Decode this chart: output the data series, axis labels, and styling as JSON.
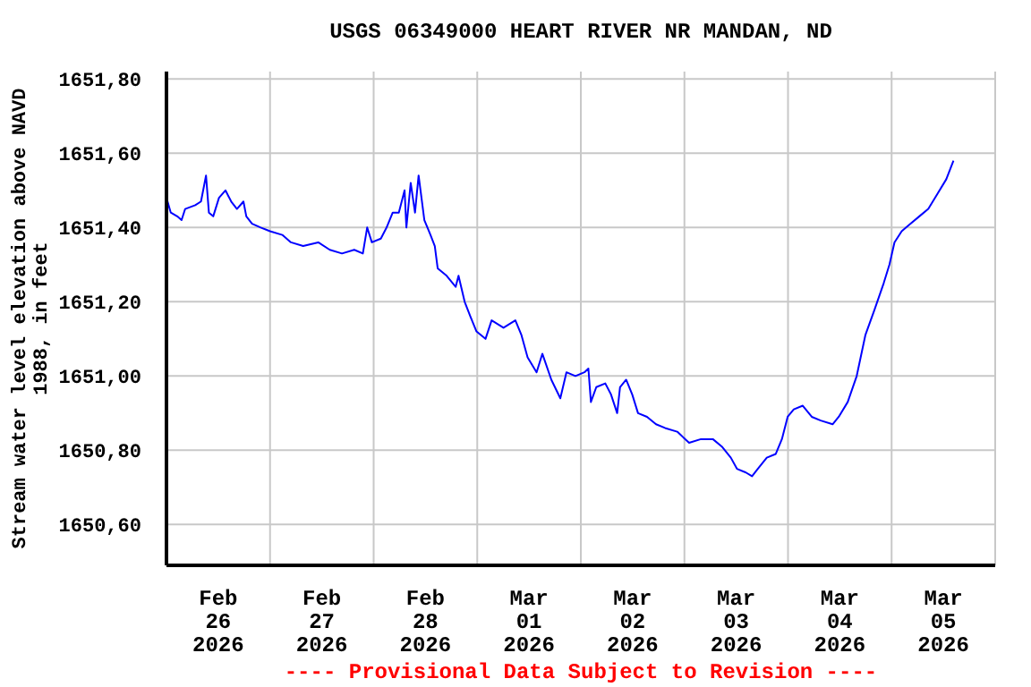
{
  "chart_data": {
    "type": "line",
    "title": "USGS 06349000 HEART RIVER NR MANDAN, ND",
    "ylabel": "Stream water level elevation above NAVD\n1988, in feet",
    "annotations": [
      "---- Provisional Data Subject to Revision ----"
    ],
    "x": [
      "2026-02-26T00:00",
      "2026-02-26T01:00",
      "2026-02-26T02:30",
      "2026-02-26T03:30",
      "2026-02-26T04:20",
      "2026-02-26T06:40",
      "2026-02-26T08:00",
      "2026-02-26T09:10",
      "2026-02-26T09:50",
      "2026-02-26T10:50",
      "2026-02-26T12:10",
      "2026-02-26T13:40",
      "2026-02-26T15:00",
      "2026-02-26T16:20",
      "2026-02-26T17:50",
      "2026-02-26T18:30",
      "2026-02-26T19:50",
      "2026-02-26T21:50",
      "2026-02-27T00:00",
      "2026-02-27T02:50",
      "2026-02-27T04:50",
      "2026-02-27T07:40",
      "2026-02-27T11:10",
      "2026-02-27T13:50",
      "2026-02-27T16:40",
      "2026-02-27T19:30",
      "2026-02-27T21:30",
      "2026-02-27T22:30",
      "2026-02-27T23:35",
      "2026-02-28T01:40",
      "2026-02-28T03:00",
      "2026-02-28T04:25",
      "2026-02-28T05:50",
      "2026-02-28T07:10",
      "2026-02-28T07:35",
      "2026-02-28T08:35",
      "2026-02-28T09:35",
      "2026-02-28T10:25",
      "2026-02-28T11:45",
      "2026-02-28T13:10",
      "2026-02-28T14:10",
      "2026-02-28T14:50",
      "2026-02-28T16:55",
      "2026-02-28T19:00",
      "2026-02-28T19:40",
      "2026-02-28T21:05",
      "2026-02-28T22:25",
      "2026-02-28T23:50",
      "2026-03-01T01:55",
      "2026-03-01T03:20",
      "2026-03-01T06:05",
      "2026-03-01T08:50",
      "2026-03-01T10:15",
      "2026-03-01T11:40",
      "2026-03-01T13:45",
      "2026-03-01T15:05",
      "2026-03-01T17:10",
      "2026-03-01T19:15",
      "2026-03-01T20:40",
      "2026-03-01T22:45",
      "2026-03-02T00:50",
      "2026-03-02T01:45",
      "2026-03-02T02:20",
      "2026-03-02T03:35",
      "2026-03-02T05:40",
      "2026-03-02T07:00",
      "2026-03-02T08:25",
      "2026-03-02T09:05",
      "2026-03-02T10:30",
      "2026-03-02T11:55",
      "2026-03-02T13:15",
      "2026-03-02T15:20",
      "2026-03-02T17:25",
      "2026-03-02T19:30",
      "2026-03-02T22:20",
      "2026-03-03T01:05",
      "2026-03-03T03:50",
      "2026-03-03T06:35",
      "2026-03-03T08:40",
      "2026-03-03T10:45",
      "2026-03-03T12:10",
      "2026-03-03T14:15",
      "2026-03-03T15:40",
      "2026-03-03T17:00",
      "2026-03-03T19:05",
      "2026-03-03T21:10",
      "2026-03-03T22:35",
      "2026-03-03T23:55",
      "2026-03-04T01:20",
      "2026-03-04T03:25",
      "2026-03-04T05:30",
      "2026-03-04T07:35",
      "2026-03-04T10:20",
      "2026-03-04T11:45",
      "2026-03-04T13:50",
      "2026-03-04T15:55",
      "2026-03-04T17:55",
      "2026-03-04T20:05",
      "2026-03-04T22:10",
      "2026-03-04T23:30",
      "2026-03-05T00:40",
      "2026-03-05T02:20",
      "2026-03-05T04:20",
      "2026-03-05T06:25",
      "2026-03-05T08:30",
      "2026-03-05T10:35",
      "2026-03-05T12:40",
      "2026-03-05T14:20"
    ],
    "series": [
      {
        "color": "#0000ff",
        "values": [
          1651.48,
          1651.44,
          1651.43,
          1651.42,
          1651.45,
          1651.46,
          1651.47,
          1651.54,
          1651.44,
          1651.43,
          1651.48,
          1651.5,
          1651.47,
          1651.45,
          1651.47,
          1651.43,
          1651.41,
          1651.4,
          1651.39,
          1651.38,
          1651.36,
          1651.35,
          1651.36,
          1651.34,
          1651.33,
          1651.34,
          1651.33,
          1651.4,
          1651.36,
          1651.37,
          1651.4,
          1651.44,
          1651.44,
          1651.5,
          1651.4,
          1651.52,
          1651.44,
          1651.54,
          1651.42,
          1651.38,
          1651.35,
          1651.29,
          1651.27,
          1651.24,
          1651.27,
          1651.2,
          1651.16,
          1651.12,
          1651.1,
          1651.15,
          1651.13,
          1651.15,
          1651.11,
          1651.05,
          1651.01,
          1651.06,
          1650.99,
          1650.94,
          1651.01,
          1651.0,
          1651.01,
          1651.02,
          1650.93,
          1650.97,
          1650.98,
          1650.95,
          1650.9,
          1650.97,
          1650.99,
          1650.95,
          1650.9,
          1650.89,
          1650.87,
          1650.86,
          1650.85,
          1650.82,
          1650.83,
          1650.83,
          1650.81,
          1650.78,
          1650.75,
          1650.74,
          1650.73,
          1650.75,
          1650.78,
          1650.79,
          1650.83,
          1650.89,
          1650.91,
          1650.92,
          1650.89,
          1650.88,
          1650.87,
          1650.89,
          1650.93,
          1651.0,
          1651.11,
          1651.18,
          1651.25,
          1651.3,
          1651.36,
          1651.39,
          1651.41,
          1651.43,
          1651.45,
          1651.49,
          1651.53,
          1651.58
        ]
      }
    ],
    "xlim": [
      "2026-02-26T00:00",
      "2026-03-06T00:00"
    ],
    "xticks": [
      {
        "value": "2026-02-26T00:00",
        "label": null
      },
      {
        "value": "2026-02-26T12:00",
        "label": "Feb\n26\n2026"
      },
      {
        "value": "2026-02-27T00:00",
        "label": null
      },
      {
        "value": "2026-02-27T12:00",
        "label": "Feb\n27\n2026"
      },
      {
        "value": "2026-02-28T00:00",
        "label": null
      },
      {
        "value": "2026-02-28T12:00",
        "label": "Feb\n28\n2026"
      },
      {
        "value": "2026-03-01T00:00",
        "label": null
      },
      {
        "value": "2026-03-01T12:00",
        "label": "Mar\n01\n2026"
      },
      {
        "value": "2026-03-02T00:00",
        "label": null
      },
      {
        "value": "2026-03-02T12:00",
        "label": "Mar\n02\n2026"
      },
      {
        "value": "2026-03-03T00:00",
        "label": null
      },
      {
        "value": "2026-03-03T12:00",
        "label": "Mar\n03\n2026"
      },
      {
        "value": "2026-03-04T00:00",
        "label": null
      },
      {
        "value": "2026-03-04T12:00",
        "label": "Mar\n04\n2026"
      },
      {
        "value": "2026-03-05T00:00",
        "label": null
      },
      {
        "value": "2026-03-05T12:00",
        "label": "Mar\n05\n2026"
      },
      {
        "value": "2026-03-06T00:00",
        "label": null
      }
    ],
    "ylim": [
      1650.49,
      1651.82
    ],
    "yticks": [
      {
        "value": 1650.6,
        "label": "1650,60"
      },
      {
        "value": 1650.8,
        "label": "1650,80"
      },
      {
        "value": 1651.0,
        "label": "1651,00"
      },
      {
        "value": 1651.2,
        "label": "1651,20"
      },
      {
        "value": 1651.4,
        "label": "1651,40"
      },
      {
        "value": 1651.6,
        "label": "1651,60"
      },
      {
        "value": 1651.8,
        "label": "1651,80"
      }
    ],
    "grid": true
  }
}
